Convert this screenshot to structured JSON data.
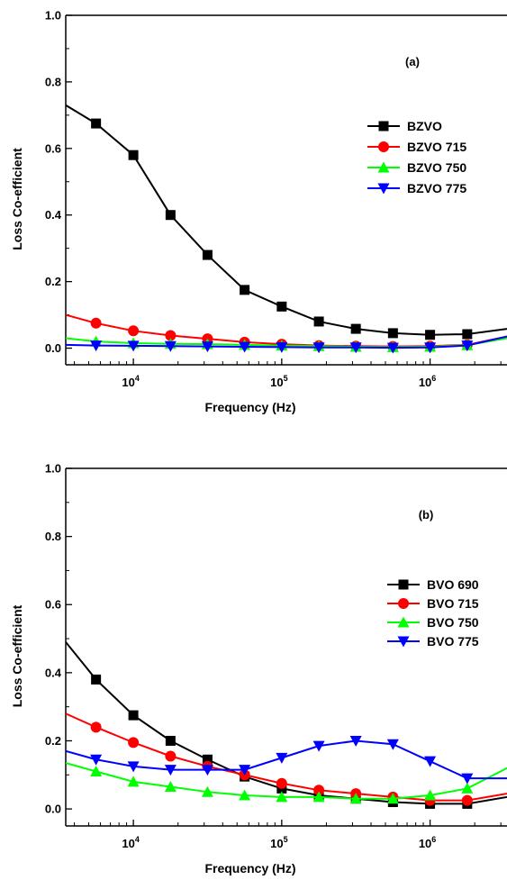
{
  "chart_data": [
    {
      "type": "line",
      "panel_label": "(a)",
      "xlabel": "Frequency (Hz)",
      "ylabel": "Loss Co-efficient",
      "x_scale": "log",
      "xlim": [
        3500,
        3300000
      ],
      "ylim": [
        -0.05,
        1.0
      ],
      "y_ticks": [
        "0.0",
        "0.2",
        "0.4",
        "0.6",
        "0.8",
        "1.0"
      ],
      "x_ticks": [
        {
          "base": "10",
          "exp": "4",
          "value": 10000
        },
        {
          "base": "10",
          "exp": "5",
          "value": 100000
        },
        {
          "base": "10",
          "exp": "6",
          "value": 1000000
        }
      ],
      "grid": false,
      "legend_position": "right",
      "x": [
        3500,
        5600,
        10000,
        17800,
        31600,
        56200,
        100000,
        178000,
        316000,
        562000,
        1000000,
        1780000,
        3300000
      ],
      "series": [
        {
          "name": "BZVO",
          "color": "#000000",
          "marker": "square",
          "values": [
            0.73,
            0.675,
            0.58,
            0.4,
            0.28,
            0.175,
            0.125,
            0.08,
            0.058,
            0.045,
            0.04,
            0.042,
            0.058
          ]
        },
        {
          "name": "BZVO 715",
          "color": "#ff0000",
          "marker": "circle",
          "values": [
            0.1,
            0.075,
            0.052,
            0.038,
            0.028,
            0.018,
            0.012,
            0.008,
            0.006,
            0.005,
            0.006,
            0.01,
            0.035
          ]
        },
        {
          "name": "BZVO 750",
          "color": "#00ff00",
          "marker": "triangle-up",
          "values": [
            0.03,
            0.02,
            0.015,
            0.013,
            0.012,
            0.01,
            0.008,
            0.006,
            0.004,
            0.003,
            0.004,
            0.009,
            0.03
          ]
        },
        {
          "name": "BZVO 775",
          "color": "#0000ff",
          "marker": "triangle-down",
          "values": [
            0.01,
            0.008,
            0.007,
            0.006,
            0.005,
            0.004,
            0.003,
            0.002,
            0.002,
            0.001,
            0.002,
            0.008,
            0.035
          ]
        }
      ]
    },
    {
      "type": "line",
      "panel_label": "(b)",
      "xlabel": "Frequency (Hz)",
      "ylabel": "Loss Co-efficient",
      "x_scale": "log",
      "xlim": [
        3500,
        3300000
      ],
      "ylim": [
        -0.05,
        1.0
      ],
      "y_ticks": [
        "0.0",
        "0.2",
        "0.4",
        "0.6",
        "0.8",
        "1.0"
      ],
      "x_ticks": [
        {
          "base": "10",
          "exp": "4",
          "value": 10000
        },
        {
          "base": "10",
          "exp": "5",
          "value": 100000
        },
        {
          "base": "10",
          "exp": "6",
          "value": 1000000
        }
      ],
      "grid": false,
      "legend_position": "right",
      "x": [
        3500,
        5600,
        10000,
        17800,
        31600,
        56200,
        100000,
        178000,
        316000,
        562000,
        1000000,
        1780000,
        3300000
      ],
      "series": [
        {
          "name": "BVO 690",
          "color": "#000000",
          "marker": "square",
          "values": [
            0.49,
            0.38,
            0.275,
            0.2,
            0.145,
            0.095,
            0.06,
            0.04,
            0.03,
            0.02,
            0.015,
            0.015,
            0.035
          ]
        },
        {
          "name": "BVO 715",
          "color": "#ff0000",
          "marker": "circle",
          "values": [
            0.28,
            0.24,
            0.195,
            0.155,
            0.125,
            0.1,
            0.075,
            0.055,
            0.045,
            0.035,
            0.025,
            0.025,
            0.045
          ]
        },
        {
          "name": "BVO 750",
          "color": "#00ff00",
          "marker": "triangle-up",
          "values": [
            0.135,
            0.11,
            0.08,
            0.065,
            0.05,
            0.04,
            0.035,
            0.035,
            0.03,
            0.03,
            0.04,
            0.06,
            0.12
          ]
        },
        {
          "name": "BVO 775",
          "color": "#0000ff",
          "marker": "triangle-down",
          "values": [
            0.17,
            0.145,
            0.125,
            0.115,
            0.115,
            0.115,
            0.15,
            0.185,
            0.2,
            0.19,
            0.14,
            0.09,
            0.09
          ]
        }
      ]
    }
  ]
}
